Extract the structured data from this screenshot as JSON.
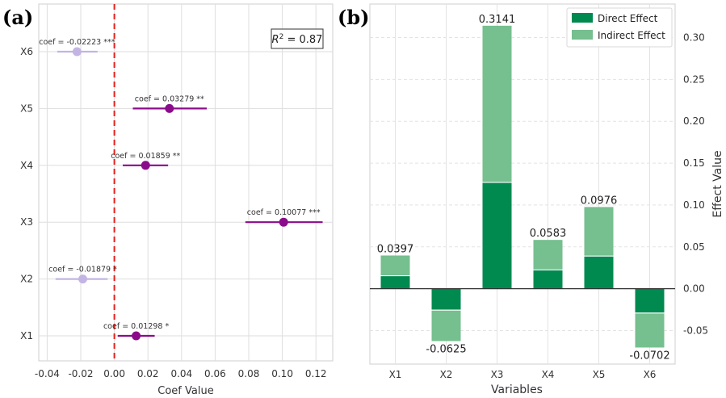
{
  "panel_labels": {
    "a": "(a)",
    "b": "(b)"
  },
  "chart_data": [
    {
      "type": "scatter",
      "xlabel": "Coef Value",
      "ylabel": "",
      "categories": [
        "X6",
        "X5",
        "X4",
        "X3",
        "X2",
        "X1"
      ],
      "xlim": [
        -0.045,
        0.13
      ],
      "xticks": [
        -0.04,
        -0.02,
        0.0,
        0.02,
        0.04,
        0.06,
        0.08,
        0.1,
        0.12
      ],
      "xtick_labels": [
        "-0.04",
        "-0.02",
        "0.00",
        "0.02",
        "0.04",
        "0.06",
        "0.08",
        "0.10",
        "0.12"
      ],
      "points": [
        {
          "var": "X6",
          "coef": -0.02223,
          "ci": [
            -0.034,
            -0.01
          ],
          "label": "coef = -0.02223 ***",
          "significant": false
        },
        {
          "var": "X5",
          "coef": 0.03279,
          "ci": [
            0.011,
            0.055
          ],
          "label": "coef = 0.03279 **",
          "significant": true
        },
        {
          "var": "X4",
          "coef": 0.01859,
          "ci": [
            0.005,
            0.032
          ],
          "label": "coef = 0.01859 **",
          "significant": true
        },
        {
          "var": "X3",
          "coef": 0.10077,
          "ci": [
            0.078,
            0.124
          ],
          "label": "coef = 0.10077 ***",
          "significant": true
        },
        {
          "var": "X2",
          "coef": -0.01879,
          "ci": [
            -0.035,
            -0.004
          ],
          "label": "coef = -0.01879 *",
          "significant": false
        },
        {
          "var": "X1",
          "coef": 0.01298,
          "ci": [
            0.002,
            0.024
          ],
          "label": "coef = 0.01298 *",
          "significant": true
        }
      ],
      "reference_line": 0,
      "annotation": {
        "prefix": "R",
        "superscript": "2",
        "suffix": " = 0.87"
      },
      "colors": {
        "significant": "#8b0c8b",
        "not_significant": "#c3b5e3",
        "reference_line": "#e8201c"
      },
      "grid": true
    },
    {
      "type": "bar",
      "stacked": true,
      "categories": [
        "X1",
        "X2",
        "X3",
        "X4",
        "X5",
        "X6"
      ],
      "xlabel": "Variables",
      "ylabel": "Effect Value",
      "ylim": [
        -0.09,
        0.34
      ],
      "yticks": [
        -0.05,
        0.0,
        0.05,
        0.1,
        0.15,
        0.2,
        0.25,
        0.3
      ],
      "ytick_labels": [
        "-0.05",
        "0.00",
        "0.05",
        "0.10",
        "0.15",
        "0.20",
        "0.25",
        "0.30"
      ],
      "series": [
        {
          "name": "Direct Effect",
          "color": "#008a4f",
          "values": [
            0.0155,
            -0.0255,
            0.127,
            0.0225,
            0.039,
            -0.029
          ]
        },
        {
          "name": "Indirect Effect",
          "color": "#76bf8f",
          "values": [
            0.0242,
            -0.037,
            0.1871,
            0.0358,
            0.0586,
            -0.0412
          ]
        }
      ],
      "totals": [
        0.0397,
        -0.0625,
        0.3141,
        0.0583,
        0.0976,
        -0.0702
      ],
      "total_labels": [
        "0.0397",
        "-0.0625",
        "0.3141",
        "0.0583",
        "0.0976",
        "-0.0702"
      ],
      "legend_position": "top-right",
      "grid": true
    }
  ]
}
